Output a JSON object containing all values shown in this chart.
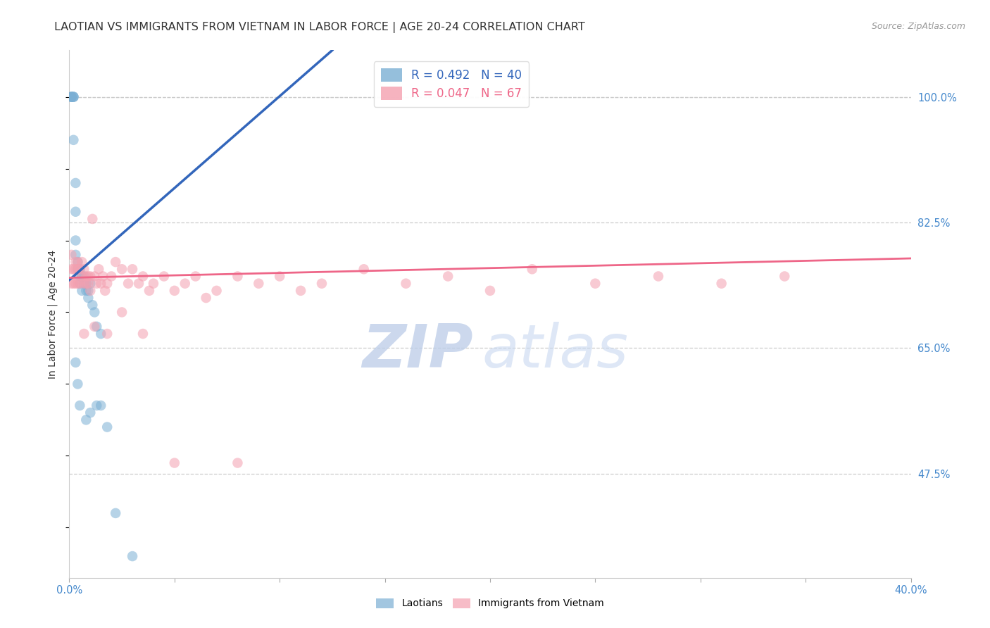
{
  "title": "LAOTIAN VS IMMIGRANTS FROM VIETNAM IN LABOR FORCE | AGE 20-24 CORRELATION CHART",
  "source": "Source: ZipAtlas.com",
  "ylabel": "In Labor Force | Age 20-24",
  "xlim": [
    0.0,
    0.4
  ],
  "ylim": [
    0.33,
    1.065
  ],
  "yticks": [
    0.475,
    0.65,
    0.825,
    1.0
  ],
  "yticklabels": [
    "47.5%",
    "65.0%",
    "82.5%",
    "100.0%"
  ],
  "xtick_positions": [
    0.0,
    0.05,
    0.1,
    0.15,
    0.2,
    0.25,
    0.3,
    0.35,
    0.4
  ],
  "blue_R": 0.492,
  "blue_N": 40,
  "pink_R": 0.047,
  "pink_N": 67,
  "blue_color": "#7BAFD4",
  "pink_color": "#F4A0B0",
  "blue_line_color": "#3366BB",
  "pink_line_color": "#EE6688",
  "blue_trend_x": [
    0.0,
    0.125
  ],
  "blue_trend_y": [
    0.745,
    1.065
  ],
  "pink_trend_x": [
    0.0,
    0.4
  ],
  "pink_trend_y": [
    0.748,
    0.775
  ],
  "blue_x": [
    0.001,
    0.001,
    0.001,
    0.001,
    0.002,
    0.002,
    0.002,
    0.002,
    0.003,
    0.003,
    0.003,
    0.003,
    0.004,
    0.004,
    0.005,
    0.005,
    0.005,
    0.006,
    0.006,
    0.007,
    0.007,
    0.008,
    0.008,
    0.009,
    0.009,
    0.01,
    0.011,
    0.012,
    0.013,
    0.015,
    0.003,
    0.004,
    0.005,
    0.008,
    0.01,
    0.013,
    0.015,
    0.018,
    0.022,
    0.03
  ],
  "blue_y": [
    1.0,
    1.0,
    1.0,
    1.0,
    1.0,
    1.0,
    1.0,
    0.94,
    0.88,
    0.84,
    0.8,
    0.78,
    0.77,
    0.76,
    0.76,
    0.75,
    0.74,
    0.75,
    0.73,
    0.75,
    0.74,
    0.74,
    0.73,
    0.73,
    0.72,
    0.74,
    0.71,
    0.7,
    0.68,
    0.67,
    0.63,
    0.6,
    0.57,
    0.55,
    0.56,
    0.57,
    0.57,
    0.54,
    0.42,
    0.36
  ],
  "pink_x": [
    0.001,
    0.001,
    0.001,
    0.002,
    0.002,
    0.003,
    0.003,
    0.003,
    0.004,
    0.004,
    0.004,
    0.005,
    0.005,
    0.006,
    0.006,
    0.007,
    0.007,
    0.008,
    0.008,
    0.009,
    0.009,
    0.01,
    0.01,
    0.011,
    0.012,
    0.013,
    0.014,
    0.015,
    0.016,
    0.017,
    0.018,
    0.02,
    0.022,
    0.025,
    0.028,
    0.03,
    0.033,
    0.035,
    0.038,
    0.04,
    0.045,
    0.05,
    0.055,
    0.06,
    0.065,
    0.07,
    0.08,
    0.09,
    0.1,
    0.11,
    0.12,
    0.14,
    0.16,
    0.18,
    0.2,
    0.22,
    0.25,
    0.28,
    0.31,
    0.34,
    0.007,
    0.012,
    0.018,
    0.025,
    0.035,
    0.05,
    0.08
  ],
  "pink_y": [
    0.78,
    0.76,
    0.74,
    0.76,
    0.74,
    0.77,
    0.76,
    0.74,
    0.77,
    0.76,
    0.74,
    0.76,
    0.74,
    0.77,
    0.75,
    0.76,
    0.74,
    0.75,
    0.74,
    0.75,
    0.74,
    0.75,
    0.73,
    0.83,
    0.75,
    0.74,
    0.76,
    0.74,
    0.75,
    0.73,
    0.74,
    0.75,
    0.77,
    0.76,
    0.74,
    0.76,
    0.74,
    0.75,
    0.73,
    0.74,
    0.75,
    0.73,
    0.74,
    0.75,
    0.72,
    0.73,
    0.75,
    0.74,
    0.75,
    0.73,
    0.74,
    0.76,
    0.74,
    0.75,
    0.73,
    0.76,
    0.74,
    0.75,
    0.74,
    0.75,
    0.67,
    0.68,
    0.67,
    0.7,
    0.67,
    0.49,
    0.49
  ],
  "watermark_zip": "ZIP",
  "watermark_atlas": "atlas",
  "background_color": "#FFFFFF",
  "grid_color": "#CCCCCC",
  "tick_color": "#4488CC",
  "title_color": "#333333",
  "title_fontsize": 11.5,
  "label_fontsize": 10,
  "tick_fontsize": 10.5,
  "legend_fontsize": 12,
  "source_fontsize": 9
}
